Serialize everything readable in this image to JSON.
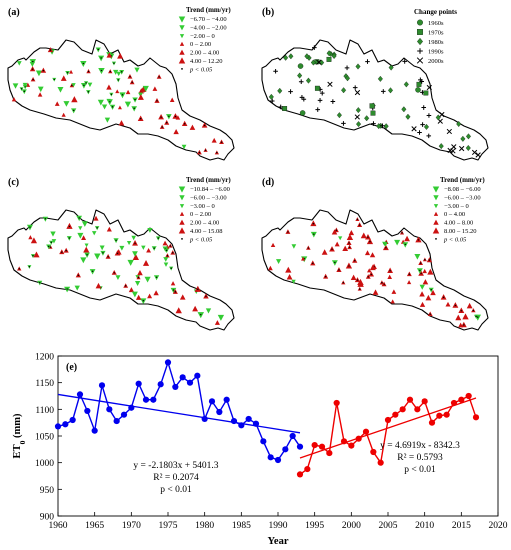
{
  "panels": {
    "a": {
      "label": "(a)",
      "legend_title": "Trend (mm/yr)",
      "legend_items": [
        "−6.70 – −4.00",
        "−4.00 – −2.00",
        "−2.00 – 0",
        "0 – 2.00",
        "2.00 – 4.00",
        "4.00 – 12.20"
      ],
      "sig_note": "p < 0.05"
    },
    "b": {
      "label": "(b)",
      "legend_title": "Change points",
      "legend_items": [
        "1960s",
        "1970s",
        "1980s",
        "1990s",
        "2000s"
      ]
    },
    "c": {
      "label": "(c)",
      "legend_title": "Trend (mm/yr)",
      "legend_items": [
        "−10.84 – −6.00",
        "−6.00 – −3.00",
        "−3.00 – 0",
        "0 – 2.00",
        "2.00 – 4.00",
        "4.00 – 15.08"
      ],
      "sig_note": "p < 0.05"
    },
    "d": {
      "label": "(d)",
      "legend_title": "Trend (mm/yr)",
      "legend_items": [
        "−8.08 – −6.00",
        "−6.00 – −3.00",
        "−3.00 – 0",
        "0 – 4.00",
        "4.00 – 8.00",
        "8.00 – 15.20"
      ],
      "sig_note": "p < 0.05"
    }
  },
  "colors": {
    "decrease": "#33cc33",
    "increase": "#cc1111",
    "change_point": "#2e8b2e",
    "series1": "#0000ee",
    "series2": "#ee0000"
  },
  "chart_data": {
    "type": "line",
    "panel_label": "(e)",
    "xlabel": "Year",
    "ylabel": "ET0 (mm)",
    "xlim": [
      1960,
      2020
    ],
    "ylim": [
      900,
      1200
    ],
    "xticks": [
      1960,
      1965,
      1970,
      1975,
      1980,
      1985,
      1990,
      1995,
      2000,
      2005,
      2010,
      2015,
      2020
    ],
    "yticks": [
      900,
      950,
      1000,
      1050,
      1100,
      1150,
      1200
    ],
    "series": [
      {
        "x": [
          1960,
          1961,
          1962,
          1963,
          1964,
          1965,
          1966,
          1967,
          1968,
          1969,
          1970,
          1971,
          1972,
          1973,
          1974,
          1975,
          1976,
          1977,
          1978,
          1979,
          1980,
          1981,
          1982,
          1983,
          1984,
          1985,
          1986,
          1987,
          1988,
          1989,
          1990,
          1991,
          1992,
          1993
        ],
        "values": [
          1068,
          1072,
          1080,
          1128,
          1097,
          1060,
          1145,
          1100,
          1078,
          1090,
          1103,
          1148,
          1118,
          1118,
          1147,
          1188,
          1142,
          1160,
          1150,
          1163,
          1082,
          1115,
          1095,
          1118,
          1078,
          1070,
          1082,
          1073,
          1040,
          1010,
          1005,
          1025,
          1050,
          1030
        ],
        "trend": {
          "slope": -2.1803,
          "intercept": 5401.3,
          "equation": "y = -2.1803x + 5401.3",
          "r2": "R² = 0.2074",
          "p": "p < 0.01"
        }
      },
      {
        "x": [
          1993,
          1994,
          1995,
          1996,
          1997,
          1998,
          1999,
          2000,
          2001,
          2002,
          2003,
          2004,
          2005,
          2006,
          2007,
          2008,
          2009,
          2010,
          2011,
          2012,
          2013,
          2014,
          2015,
          2016,
          2017
        ],
        "values": [
          978,
          988,
          1033,
          1030,
          1018,
          1112,
          1040,
          1032,
          1045,
          1058,
          1020,
          1000,
          1080,
          1090,
          1100,
          1118,
          1100,
          1115,
          1075,
          1088,
          1090,
          1112,
          1118,
          1125,
          1085
        ],
        "trend": {
          "slope": 4.6919,
          "intercept": -8342.3,
          "equation": "y = 4.6919x - 8342.3",
          "r2": "R² = 0.5793",
          "p": "p < 0.01"
        }
      }
    ]
  }
}
